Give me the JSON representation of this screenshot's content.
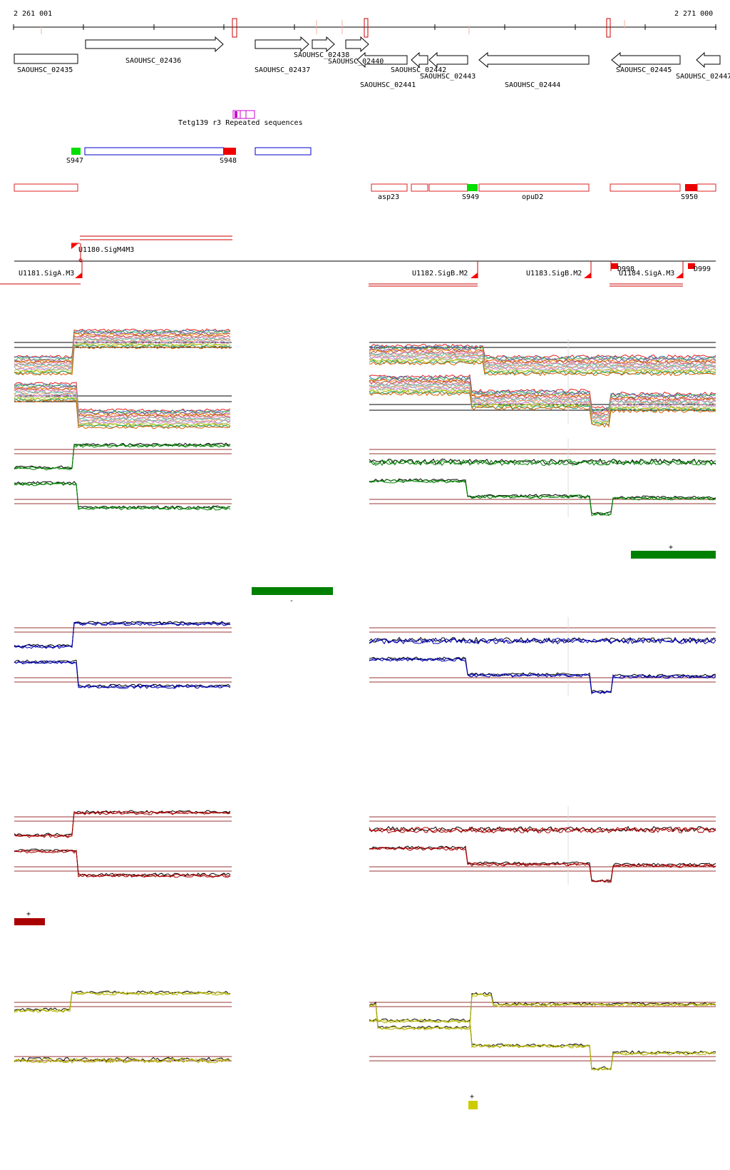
{
  "ruler": {
    "start_label": "2 261 001",
    "end_label": "2 271 000"
  },
  "genes": {
    "g02435": "SAOUHSC_02435",
    "g02436": "SAOUHSC_02436",
    "g02437": "SAOUHSC_02437",
    "g02438": "SAOUHSC_02438",
    "g02440": "SAOUHSC_02440",
    "g02441": "SAOUHSC_02441",
    "g02442": "SAOUHSC_02442",
    "g02443": "SAOUHSC_02443",
    "g02444": "SAOUHSC_02444",
    "g02445": "SAOUHSC_02445",
    "g02447": "SAOUHSC_02447"
  },
  "repeats": {
    "label": "Tetg139 r3 Repeated sequences"
  },
  "segments": {
    "s947": "S947",
    "s948": "S948",
    "s949": "S949",
    "s950": "S950"
  },
  "operons": {
    "asp23": "asp23",
    "opuD2": "opuD2"
  },
  "promoters": {
    "u1180": "U1180.SigM4M3",
    "u1181": "U1181.SigA.M3",
    "u1182": "U1182.SigB.M2",
    "u1183": "U1183.SigB.M2",
    "u1184": "U1184.SigA.M3",
    "d998": "D998",
    "d999": "D999"
  },
  "strand_marks": {
    "plus": "+",
    "minus": "-"
  },
  "colors": {
    "gene_outline": "#000000",
    "segment_green": "#00dd00",
    "segment_red": "#ee0000",
    "segment_blue": "#0000cc",
    "operon_red": "#dd2222",
    "repeat_magenta": "#cc00cc",
    "condition_green": "#008000",
    "condition_blue": "#0000aa",
    "condition_red": "#aa0000",
    "condition_yellow": "#cccc00",
    "guide_line": "#993333"
  }
}
